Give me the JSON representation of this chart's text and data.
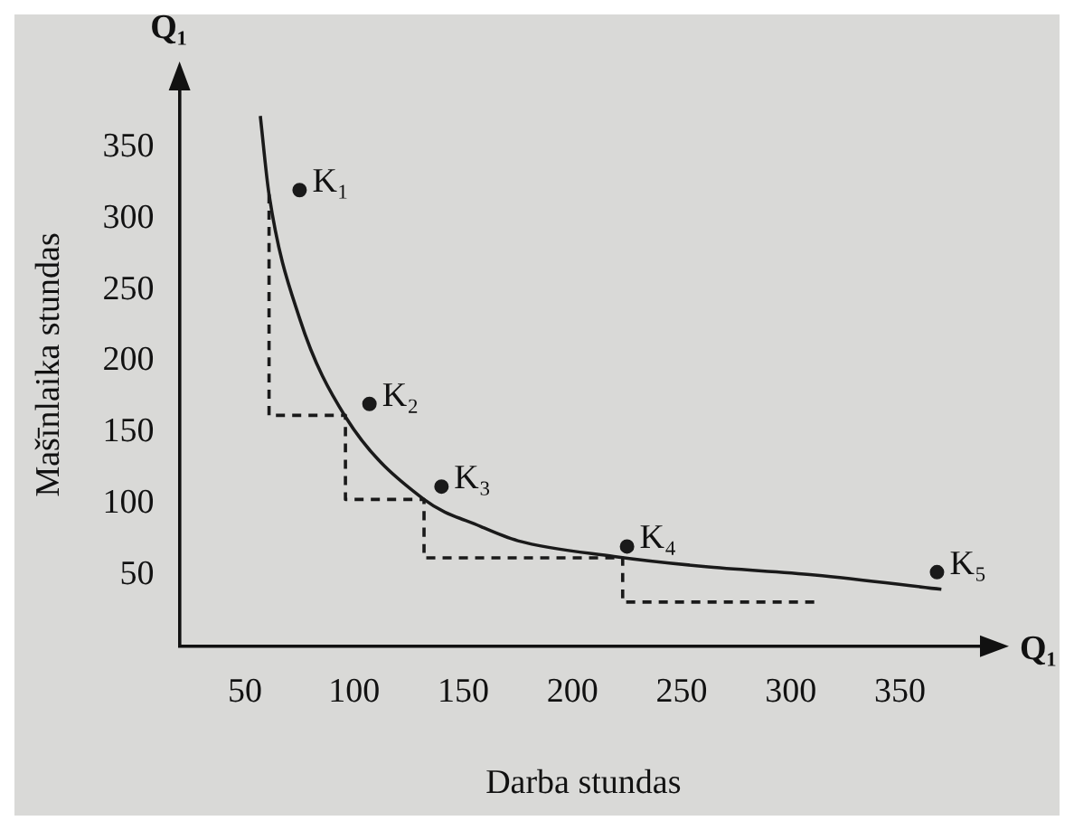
{
  "chart_data": {
    "type": "line",
    "xlabel": "Darba stundas",
    "ylabel": "Mašīnlaika stundas",
    "xlim": [
      20,
      390
    ],
    "ylim": [
      0,
      395
    ],
    "xticks": [
      50,
      100,
      150,
      200,
      250,
      300,
      350
    ],
    "yticks": [
      50,
      100,
      150,
      200,
      250,
      300,
      350
    ],
    "grid": false,
    "legend": false,
    "series": [
      {
        "color": "#1a1a1a",
        "line_style": "solid",
        "marker": "none",
        "x": [
          57,
          61,
          75,
          96,
          132,
          158,
          175,
          219,
          260,
          311,
          369
        ],
        "values": [
          372,
          317,
          230,
          161,
          103,
          84,
          74,
          63,
          56,
          50,
          40
        ]
      },
      {
        "color": "#1a1a1a",
        "line_style": "dashed",
        "marker": "none",
        "x": [
          61,
          61,
          96,
          96,
          132,
          132,
          223,
          223,
          312
        ],
        "values": [
          317,
          162,
          162,
          103,
          103,
          62,
          62,
          31,
          31
        ]
      },
      {
        "type": "scatter",
        "color": "#1a1a1a",
        "marker": "circle",
        "x": [
          75,
          107,
          140,
          225,
          367
        ],
        "values": [
          320,
          170,
          112,
          70,
          52
        ]
      }
    ],
    "annotations": [
      "Q₁",
      "Q₁",
      {
        "text": "K₁",
        "x": 75,
        "y": 320
      },
      {
        "text": "K₂",
        "x": 107,
        "y": 170
      },
      {
        "text": "K₃",
        "x": 140,
        "y": 112
      },
      {
        "text": "K₄",
        "x": 225,
        "y": 70
      },
      {
        "text": "K₅",
        "x": 367,
        "y": 52
      }
    ]
  }
}
